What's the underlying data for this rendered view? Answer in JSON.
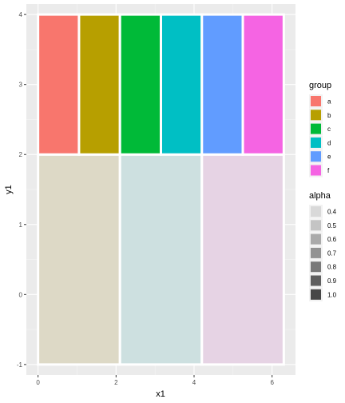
{
  "chart_data": {
    "type": "rect",
    "xlabel": "x1",
    "ylabel": "y1",
    "xlim": [
      -0.3,
      6.6
    ],
    "ylim": [
      -1.15,
      4.15
    ],
    "x_ticks": [
      0,
      2,
      4,
      6
    ],
    "y_ticks": [
      -1,
      0,
      1,
      2,
      3,
      4
    ],
    "grid": true,
    "theme": {
      "panel_bg": "#ebebeb",
      "grid_major": "#ffffff",
      "grid_minor": "#f5f5f5",
      "outline": "#ffffff"
    },
    "top_rects": [
      {
        "group": "a",
        "xmin": 0.0,
        "xmax": 1.05,
        "ymin": 2,
        "ymax": 4,
        "color": "#F8766D"
      },
      {
        "group": "b",
        "xmin": 1.05,
        "xmax": 2.1,
        "ymin": 2,
        "ymax": 4,
        "color": "#B79F00"
      },
      {
        "group": "c",
        "xmin": 2.1,
        "xmax": 3.15,
        "ymin": 2,
        "ymax": 4,
        "color": "#00BA38"
      },
      {
        "group": "d",
        "xmin": 3.15,
        "xmax": 4.2,
        "ymin": 2,
        "ymax": 4,
        "color": "#00BFC4"
      },
      {
        "group": "e",
        "xmin": 4.2,
        "xmax": 5.25,
        "ymin": 2,
        "ymax": 4,
        "color": "#619CFF"
      },
      {
        "group": "f",
        "xmin": 5.25,
        "xmax": 6.3,
        "ymin": 2,
        "ymax": 4,
        "color": "#F564E3"
      }
    ],
    "bottom_rects": [
      {
        "xmin": 0.0,
        "xmax": 2.1,
        "ymin": -1,
        "ymax": 2,
        "fill": "#ddd9c6"
      },
      {
        "xmin": 2.1,
        "xmax": 4.2,
        "ymin": -1,
        "ymax": 2,
        "fill": "#cde0e0"
      },
      {
        "xmin": 4.2,
        "xmax": 6.3,
        "ymin": -1,
        "ymax": 2,
        "fill": "#e6d3e4"
      }
    ],
    "legends": [
      {
        "title": "group",
        "entries": [
          {
            "label": "a",
            "color": "#F8766D"
          },
          {
            "label": "b",
            "color": "#B79F00"
          },
          {
            "label": "c",
            "color": "#00BA38"
          },
          {
            "label": "d",
            "color": "#00BFC4"
          },
          {
            "label": "e",
            "color": "#619CFF"
          },
          {
            "label": "f",
            "color": "#F564E3"
          }
        ]
      },
      {
        "title": "alpha",
        "entries": [
          {
            "label": "0.4",
            "color": "#d9d9d9"
          },
          {
            "label": "0.5",
            "color": "#c4c4c4"
          },
          {
            "label": "0.6",
            "color": "#aaaaaa"
          },
          {
            "label": "0.7",
            "color": "#929292"
          },
          {
            "label": "0.8",
            "color": "#797979"
          },
          {
            "label": "0.9",
            "color": "#5f5f5f"
          },
          {
            "label": "1.0",
            "color": "#474747"
          }
        ]
      }
    ]
  }
}
